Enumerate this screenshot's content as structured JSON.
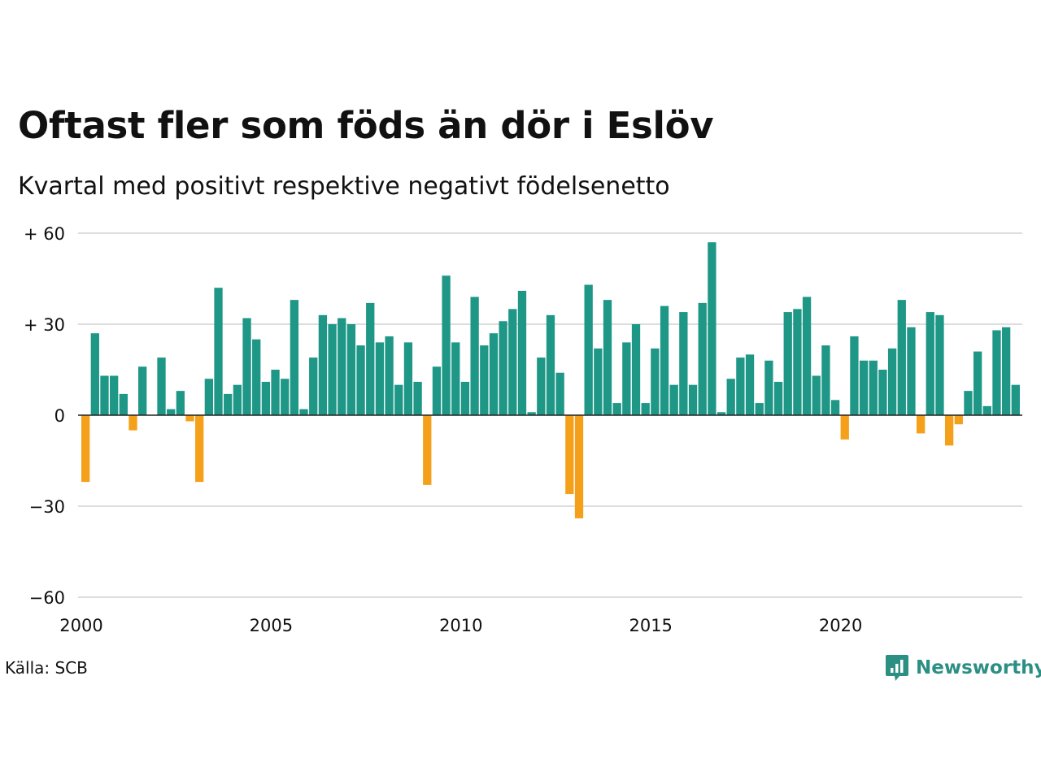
{
  "title": "Oftast fler som föds än dör i Eslöv",
  "subtitle": "Kvartal med positivt respektive negativt födelsenetto",
  "source": "Källa: SCB",
  "brand": {
    "name": "Newsworthy",
    "icon": "newsworthy-logo-icon",
    "color": "#2b8f84"
  },
  "colors": {
    "positive": "#1e9787",
    "negative": "#f5a01a",
    "grid": "#dddddd",
    "zero": "#222222"
  },
  "chart_data": {
    "type": "bar",
    "xlabel": "",
    "ylabel": "",
    "ylim": [
      -60,
      60
    ],
    "xlim": [
      2000,
      2025
    ],
    "yticks": [
      {
        "value": 60,
        "label": "+ 60"
      },
      {
        "value": 30,
        "label": "+ 30"
      },
      {
        "value": 0,
        "label": "0"
      },
      {
        "value": -30,
        "label": "−30"
      },
      {
        "value": -60,
        "label": "−60"
      }
    ],
    "xticks": [
      {
        "value": 2000,
        "label": "2000"
      },
      {
        "value": 2005,
        "label": "2005"
      },
      {
        "value": 2010,
        "label": "2010"
      },
      {
        "value": 2015,
        "label": "2015"
      },
      {
        "value": 2020,
        "label": "2020"
      }
    ],
    "grid": true,
    "legend": "none",
    "start_period": "2000 K1",
    "frequency": "quarterly",
    "values": [
      -22,
      27,
      13,
      13,
      7,
      -5,
      16,
      0,
      19,
      2,
      8,
      -2,
      -22,
      12,
      42,
      7,
      10,
      32,
      25,
      11,
      15,
      12,
      38,
      2,
      19,
      33,
      30,
      32,
      30,
      23,
      37,
      24,
      26,
      10,
      24,
      11,
      -23,
      16,
      46,
      24,
      11,
      39,
      23,
      27,
      31,
      35,
      41,
      1,
      19,
      33,
      14,
      -26,
      -34,
      43,
      22,
      38,
      4,
      24,
      30,
      4,
      22,
      36,
      10,
      34,
      10,
      37,
      57,
      1,
      12,
      19,
      20,
      4,
      18,
      11,
      34,
      35,
      39,
      13,
      23,
      5,
      -8,
      26,
      18,
      18,
      15,
      22,
      38,
      29,
      -6,
      34,
      33,
      -10,
      -3,
      8,
      21,
      3,
      28,
      29,
      10
    ]
  }
}
